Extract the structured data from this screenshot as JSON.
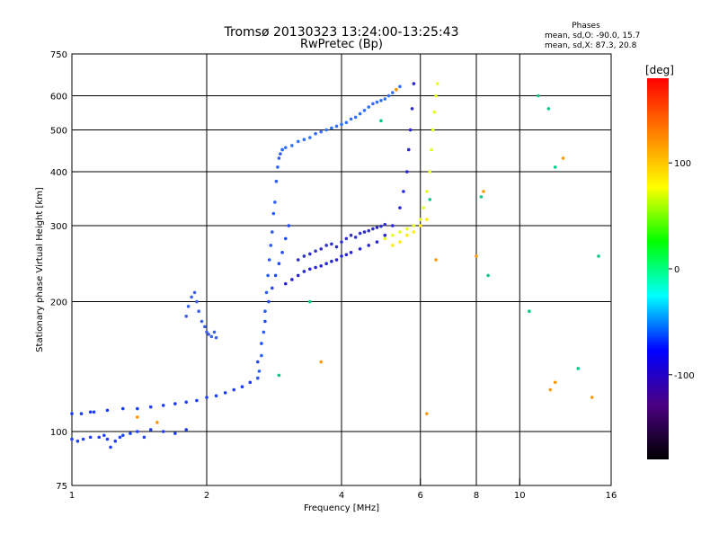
{
  "chart_data": {
    "type": "scatter",
    "title": "Tromsø 20130323 13:24:00-13:25:43",
    "subtitle": "RwPretec (Bp)",
    "xlabel": "Frequency [MHz]",
    "ylabel": "Stationary phase Virtual Height [km]",
    "xscale": "log",
    "yscale": "log",
    "xlim": [
      1,
      16
    ],
    "ylim": [
      75,
      750
    ],
    "xticks": [
      1,
      2,
      4,
      6,
      8,
      10,
      16
    ],
    "yticks": [
      75,
      100,
      200,
      300,
      400,
      500,
      600,
      750
    ],
    "grid_x": [
      2,
      4,
      6,
      8,
      10
    ],
    "grid_y": [
      100,
      200,
      300,
      400,
      500,
      600
    ],
    "phases_box": {
      "heading": "Phases",
      "line_o": "mean, sd,O: -90.0, 15.7",
      "line_x": "mean, sd,X: 87.3, 20.8"
    },
    "colorbar": {
      "label": "[deg]",
      "min": -180,
      "max": 180,
      "ticks": [
        100,
        0,
        -100
      ],
      "colors": [
        "#000000",
        "#4b0082",
        "#0000ff",
        "#00ffff",
        "#00ff00",
        "#ffff00",
        "#ff8000",
        "#ff0000"
      ]
    },
    "series": [
      {
        "phase": -95,
        "color": "#1a3cff",
        "x": [
          1.0,
          1.05,
          1.1,
          1.12,
          1.2,
          1.3,
          1.4,
          1.5,
          1.6,
          1.7,
          1.8,
          1.9,
          2.0,
          2.1,
          2.2,
          2.3,
          2.4,
          2.5,
          2.6
        ],
        "y": [
          110,
          110,
          111,
          111,
          112,
          113,
          113,
          114,
          115,
          116,
          117,
          118,
          120,
          121,
          123,
          125,
          127,
          130,
          133
        ]
      },
      {
        "phase": -100,
        "color": "#2040ff",
        "x": [
          1.0,
          1.03,
          1.06,
          1.1,
          1.15,
          1.18,
          1.2,
          1.22,
          1.25,
          1.28,
          1.3,
          1.35,
          1.4,
          1.45,
          1.5,
          1.6,
          1.7,
          1.8
        ],
        "y": [
          96,
          95,
          96,
          97,
          97,
          98,
          96,
          92,
          95,
          97,
          98,
          99,
          100,
          97,
          101,
          100,
          99,
          101
        ]
      },
      {
        "phase": -90,
        "color": "#2a5cff",
        "x": [
          2.6,
          2.62,
          2.65,
          2.68,
          2.7,
          2.72,
          2.74,
          2.76,
          2.78,
          2.8,
          2.82,
          2.84,
          2.86,
          2.88,
          2.9,
          2.92,
          2.95
        ],
        "y": [
          133,
          138,
          150,
          170,
          190,
          210,
          230,
          250,
          270,
          290,
          320,
          340,
          380,
          410,
          430,
          440,
          450
        ]
      },
      {
        "phase": -95,
        "color": "#1f4aff",
        "x": [
          2.6,
          2.65,
          2.7,
          2.75,
          2.8,
          2.85,
          2.9,
          2.95,
          3.0,
          3.05
        ],
        "y": [
          145,
          160,
          180,
          200,
          215,
          230,
          245,
          260,
          280,
          300
        ]
      },
      {
        "phase": -85,
        "color": "#3070ff",
        "x": [
          2.95,
          3.0,
          3.1,
          3.2,
          3.3,
          3.4,
          3.5,
          3.6,
          3.7,
          3.8,
          3.9,
          4.0,
          4.1,
          4.2,
          4.3,
          4.4,
          4.5,
          4.6,
          4.7,
          4.8,
          4.9,
          5.0,
          5.1,
          5.2,
          5.3,
          5.4
        ],
        "y": [
          450,
          455,
          460,
          470,
          475,
          480,
          490,
          495,
          500,
          505,
          510,
          515,
          520,
          530,
          535,
          545,
          555,
          565,
          575,
          580,
          585,
          590,
          600,
          610,
          620,
          630
        ]
      },
      {
        "phase": -105,
        "color": "#2626d8",
        "x": [
          3.0,
          3.1,
          3.2,
          3.3,
          3.4,
          3.5,
          3.6,
          3.7,
          3.8,
          3.9,
          4.0,
          4.1,
          4.2,
          4.4,
          4.6,
          4.8,
          5.0,
          5.2,
          5.4,
          5.5,
          5.6,
          5.65,
          5.7,
          5.75,
          5.8
        ],
        "y": [
          220,
          225,
          230,
          235,
          238,
          240,
          242,
          245,
          248,
          250,
          255,
          257,
          260,
          265,
          270,
          275,
          285,
          300,
          330,
          360,
          400,
          450,
          500,
          560,
          640
        ]
      },
      {
        "phase": -110,
        "color": "#3030c8",
        "x": [
          3.2,
          3.3,
          3.4,
          3.5,
          3.6,
          3.7,
          3.8,
          3.9,
          4.0,
          4.1,
          4.2,
          4.3,
          4.4,
          4.5,
          4.6,
          4.7,
          4.8,
          4.9,
          5.0
        ],
        "y": [
          250,
          255,
          258,
          262,
          265,
          270,
          272,
          268,
          275,
          280,
          285,
          282,
          288,
          290,
          292,
          295,
          297,
          299,
          302
        ]
      },
      {
        "phase": -100,
        "color": "#3a60e8",
        "x": [
          1.8,
          1.82,
          1.85,
          1.88,
          1.9,
          1.92,
          1.95,
          1.98,
          2.0,
          2.02,
          2.05,
          2.08,
          2.1
        ],
        "y": [
          185,
          195,
          205,
          210,
          200,
          190,
          180,
          175,
          170,
          168,
          166,
          170,
          165
        ]
      },
      {
        "phase": 95,
        "color": "#e6ff1a",
        "x": [
          5.0,
          5.2,
          5.4,
          5.6,
          5.8,
          6.0,
          6.1,
          6.2,
          6.3,
          6.35,
          6.4,
          6.45,
          6.5,
          6.55
        ],
        "y": [
          280,
          285,
          290,
          295,
          300,
          310,
          330,
          360,
          400,
          450,
          500,
          550,
          600,
          640
        ]
      },
      {
        "phase": 100,
        "color": "#ffee00",
        "x": [
          5.2,
          5.4,
          5.6,
          5.8,
          6.0,
          6.2
        ],
        "y": [
          270,
          275,
          285,
          290,
          300,
          310
        ]
      },
      {
        "phase": 0,
        "color": "#00cc88",
        "x": [
          2.9,
          3.4,
          4.9,
          6.3,
          8.2,
          8.5,
          10.5,
          11.0,
          11.6,
          12.0,
          13.5,
          15.0
        ],
        "y": [
          135,
          200,
          525,
          345,
          350,
          230,
          190,
          600,
          560,
          410,
          140,
          255
        ]
      },
      {
        "phase": 100,
        "color": "#ff9900",
        "x": [
          1.4,
          1.55,
          3.6,
          5.3,
          6.2,
          6.5,
          8.0,
          8.3,
          11.7,
          12.0,
          12.5,
          14.5
        ],
        "y": [
          108,
          105,
          145,
          620,
          110,
          250,
          255,
          360,
          125,
          130,
          430,
          120
        ]
      }
    ]
  }
}
